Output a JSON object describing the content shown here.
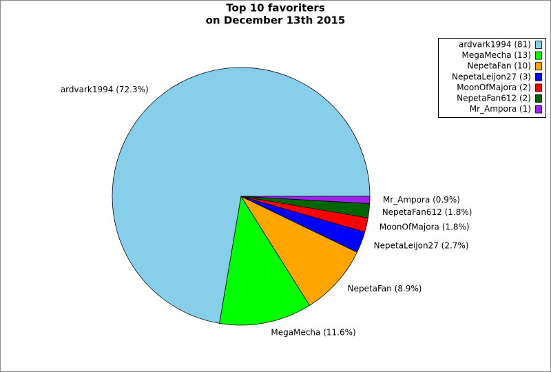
{
  "chart_data": {
    "type": "pie",
    "title_lines": [
      "Top 10 favoriters",
      "on December 13th 2015"
    ],
    "legend_labels": [
      "ardvark1994 (81)",
      "MegaMecha (13)",
      "NepetaFan (10)",
      "NepetaLeijon27 (3)",
      "MoonOfMajora (2)",
      "NepetaFan612 (2)",
      "Mr_Ampora (1)"
    ],
    "values": [
      81,
      13,
      10,
      3,
      2,
      2,
      1
    ],
    "value_labels": [
      "ardvark1994 (72.3%)",
      "MegaMecha (11.6%)",
      "NepetaFan (8.9%)",
      "NepetaLeijon27 (2.7%)",
      "MoonOfMajora (1.8%)",
      "NepetaFan612 (1.8%)",
      "Mr_Ampora (0.9%)"
    ],
    "colors": [
      "#87ceeb",
      "#00ff00",
      "#ffa500",
      "#0000ff",
      "#ff0000",
      "#006400",
      "#a020f0"
    ],
    "legend": "upper right"
  }
}
